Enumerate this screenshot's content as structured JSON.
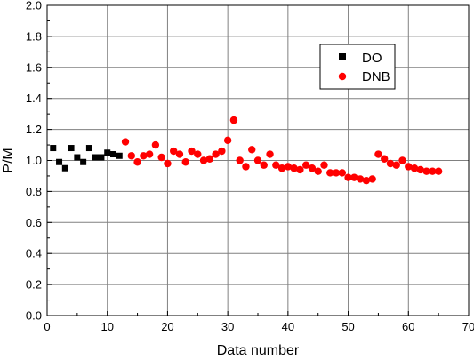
{
  "chart_data": {
    "type": "scatter",
    "xlabel": "Data number",
    "ylabel": "P/M",
    "xlim": [
      0,
      70
    ],
    "ylim": [
      0.0,
      2.0
    ],
    "x_ticks": [
      "0",
      "10",
      "20",
      "30",
      "40",
      "50",
      "60",
      "70"
    ],
    "y_ticks": [
      "0.0",
      "0.2",
      "0.4",
      "0.6",
      "0.8",
      "1.0",
      "1.2",
      "1.4",
      "1.6",
      "1.8",
      "2.0"
    ],
    "grid": true,
    "legend_position": "top-right",
    "series": [
      {
        "name": "DO",
        "marker": "square",
        "color": "#000000",
        "x": [
          1,
          2,
          3,
          4,
          5,
          6,
          7,
          8,
          9,
          10,
          11,
          12
        ],
        "y": [
          1.08,
          0.99,
          0.95,
          1.08,
          1.02,
          0.99,
          1.08,
          1.02,
          1.02,
          1.05,
          1.04,
          1.03
        ]
      },
      {
        "name": "DNB",
        "marker": "circle",
        "color": "#ff0000",
        "x": [
          13,
          14,
          15,
          16,
          17,
          18,
          19,
          20,
          21,
          22,
          23,
          24,
          25,
          26,
          27,
          28,
          29,
          30,
          31,
          32,
          33,
          34,
          35,
          36,
          37,
          38,
          39,
          40,
          41,
          42,
          43,
          44,
          45,
          46,
          47,
          48,
          49,
          50,
          51,
          52,
          53,
          54,
          55,
          56,
          57,
          58,
          59,
          60,
          61,
          62,
          63,
          64,
          65
        ],
        "y": [
          1.12,
          1.03,
          0.99,
          1.03,
          1.04,
          1.1,
          1.02,
          0.98,
          1.06,
          1.04,
          0.99,
          1.06,
          1.04,
          1.0,
          1.01,
          1.04,
          1.06,
          1.13,
          1.26,
          1.0,
          0.96,
          1.07,
          1.0,
          0.97,
          1.04,
          0.97,
          0.95,
          0.96,
          0.95,
          0.94,
          0.97,
          0.95,
          0.93,
          0.97,
          0.92,
          0.92,
          0.92,
          0.89,
          0.89,
          0.88,
          0.87,
          0.88,
          1.04,
          1.01,
          0.98,
          0.97,
          1.0,
          0.96,
          0.95,
          0.94,
          0.93,
          0.93,
          0.93
        ]
      }
    ]
  }
}
